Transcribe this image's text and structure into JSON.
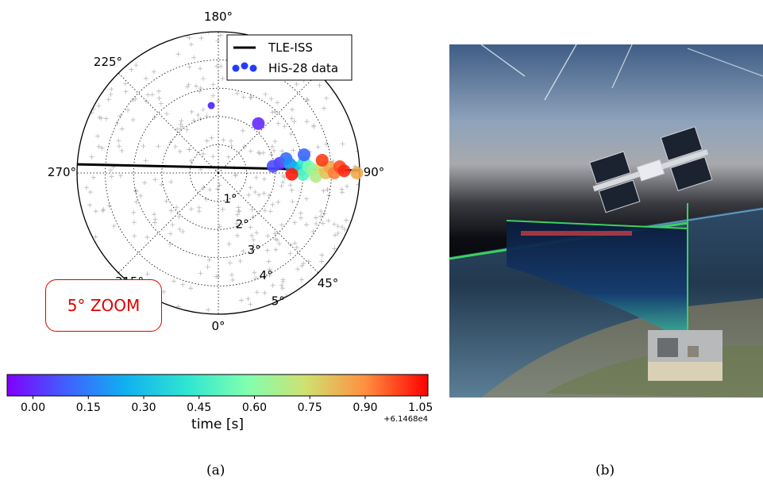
{
  "chart_data": {
    "type": "scatter",
    "subtype": "polar",
    "title": "",
    "radial_range": [
      0,
      5
    ],
    "radial_tick_labels": [
      "1°",
      "2°",
      "3°",
      "4°",
      "5°"
    ],
    "angular_tick_labels": [
      {
        "label": "0°",
        "deg": 0
      },
      {
        "label": "45°",
        "deg": 45
      },
      {
        "label": "90°",
        "deg": 90
      },
      {
        "label": "180°",
        "deg": 180
      },
      {
        "label": "225°",
        "deg": 225
      },
      {
        "label": "270°",
        "deg": 270
      },
      {
        "label": "315°",
        "deg": 315
      }
    ],
    "grid": true,
    "legend": {
      "placement": "top-right",
      "entries": [
        {
          "label": "TLE-ISS",
          "style": "line",
          "color": "#000000"
        },
        {
          "label": "HiS-28 data",
          "style": "points",
          "color": "#1f3cff"
        }
      ]
    },
    "tle_iss_track": {
      "start": {
        "r": 5.0,
        "theta": 266.5
      },
      "end": {
        "r": 5.0,
        "theta": 91.0
      }
    },
    "hiS28_data": [
      {
        "r": 2.25,
        "theta": 141,
        "t": 0.0
      },
      {
        "r": 2.2,
        "theta": 99,
        "t": 0.02
      },
      {
        "r": 1.95,
        "theta": 97,
        "t": 0.06
      },
      {
        "r": 2.45,
        "theta": 102,
        "t": 0.12
      },
      {
        "r": 2.55,
        "theta": 97,
        "t": 0.18
      },
      {
        "r": 2.7,
        "theta": 94,
        "t": 0.26
      },
      {
        "r": 2.9,
        "theta": 92,
        "t": 0.34
      },
      {
        "r": 3.05,
        "theta": 97,
        "t": 0.42
      },
      {
        "r": 3.0,
        "theta": 89,
        "t": 0.5
      },
      {
        "r": 3.2,
        "theta": 94,
        "t": 0.56
      },
      {
        "r": 3.35,
        "theta": 92,
        "t": 0.62
      },
      {
        "r": 3.45,
        "theta": 88,
        "t": 0.68
      },
      {
        "r": 3.65,
        "theta": 93,
        "t": 0.74
      },
      {
        "r": 3.8,
        "theta": 90,
        "t": 0.8
      },
      {
        "r": 3.95,
        "theta": 93,
        "t": 0.86
      },
      {
        "r": 4.1,
        "theta": 90,
        "t": 0.92
      },
      {
        "r": 4.3,
        "theta": 93,
        "t": 0.98
      },
      {
        "r": 4.45,
        "theta": 91,
        "t": 1.02
      },
      {
        "r": 4.9,
        "theta": 90,
        "t": 0.85
      },
      {
        "r": 2.6,
        "theta": 89,
        "t": 1.04
      },
      {
        "r": 3.1,
        "theta": 102,
        "t": 0.1
      },
      {
        "r": 3.7,
        "theta": 97,
        "t": 1.0
      }
    ],
    "outlier_point": {
      "r": 2.4,
      "theta": 186,
      "t": 0.02
    },
    "colorbar": {
      "label": "time [s]",
      "ticks": [
        "0.00",
        "0.15",
        "0.30",
        "0.45",
        "0.60",
        "0.75",
        "0.90",
        "1.05"
      ],
      "tick_values": [
        0.0,
        0.15,
        0.3,
        0.45,
        0.6,
        0.75,
        0.9,
        1.05
      ],
      "range": [
        -0.07,
        1.07
      ],
      "offset": "+6.1468e4",
      "colormap": "rainbow"
    }
  },
  "annotation": {
    "zoom_label": "5° ZOOM"
  },
  "captions": {
    "left": "(a)",
    "right": "(b)"
  }
}
